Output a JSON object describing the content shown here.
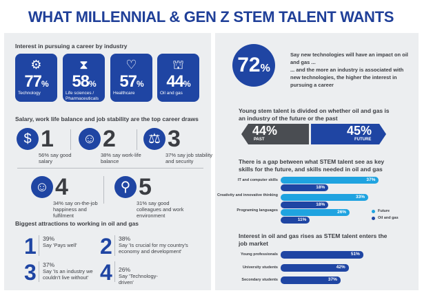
{
  "title": "WHAT MILLENNIAL & GEN Z STEM TALENT WANTS",
  "colors": {
    "blue": "#1f45a3",
    "light_blue": "#1fa3e0",
    "dark": "#4a4d52"
  },
  "industry": {
    "heading": "Interest in pursuing a career by industry",
    "tiles": [
      {
        "value": "77",
        "unit": "%",
        "label": "Technology",
        "icon": "circuit-icon"
      },
      {
        "value": "58",
        "unit": "%",
        "label": "Life sciences / Pharmaceuticals",
        "icon": "dna-icon"
      },
      {
        "value": "57",
        "unit": "%",
        "label": "Healthcare",
        "icon": "hand-heart-icon"
      },
      {
        "value": "44",
        "unit": "%",
        "label": "Oil and gas",
        "icon": "refinery-icon"
      }
    ]
  },
  "draws": {
    "heading": "Salary, work life balance and job stability are the top career draws",
    "items": [
      {
        "rank": "1",
        "text": "56% say good salary",
        "icon": "dollar-icon"
      },
      {
        "rank": "2",
        "text": "38% say work-life balance",
        "icon": "person-gear-icon"
      },
      {
        "rank": "3",
        "text": "37% say job stability and  security",
        "icon": "scales-icon"
      },
      {
        "rank": "4",
        "text": "34% say on-the-job happiness and fulfilment",
        "icon": "smiley-icon"
      },
      {
        "rank": "5",
        "text": "31% say good colleagues and work environment",
        "icon": "desk-lamp-icon"
      }
    ]
  },
  "attractions": {
    "heading": "Biggest attractions to working in oil and gas",
    "items": [
      {
        "rank": "1",
        "pct": "39%",
        "text": "Say 'Pays well'"
      },
      {
        "rank": "2",
        "pct": "38%",
        "text": "Say 'Is crucial for my country's economy and development'"
      },
      {
        "rank": "3",
        "pct": "37%",
        "text": "Say 'Is an industry we couldn't live without'"
      },
      {
        "rank": "4",
        "pct": "26%",
        "text": "Say 'Technology-driven'"
      }
    ]
  },
  "tech": {
    "value": "72",
    "unit": "%",
    "text": "Say new technologies will have an impact on oil and gas ...\n... and the more an industry is associated with new technologies, the higher the interest in pursuing a career"
  },
  "divided": {
    "heading": "Young stem talent is divided on whether oil and gas is an industry of the future or the past",
    "past": {
      "value": "44%",
      "label": "PAST"
    },
    "future": {
      "value": "45%",
      "label": "FUTURE"
    }
  },
  "chart_data": [
    {
      "type": "bar",
      "title": "There is a gap between what STEM talent see as key skills for the future, and skills needed in oil and gas",
      "categories": [
        "IT and computer skills",
        "Creativity and innovative thinking",
        "Programing languages"
      ],
      "series": [
        {
          "name": "Future",
          "values": [
            37,
            33,
            26
          ]
        },
        {
          "name": "Oil and gas",
          "values": [
            18,
            18,
            11
          ]
        }
      ],
      "unit": "%"
    },
    {
      "type": "bar",
      "title": "Interest in oil and gas rises as STEM talent enters the job market",
      "categories": [
        "Young professionals",
        "University students",
        "Secondary students"
      ],
      "values": [
        51,
        42,
        37
      ],
      "unit": "%"
    }
  ]
}
